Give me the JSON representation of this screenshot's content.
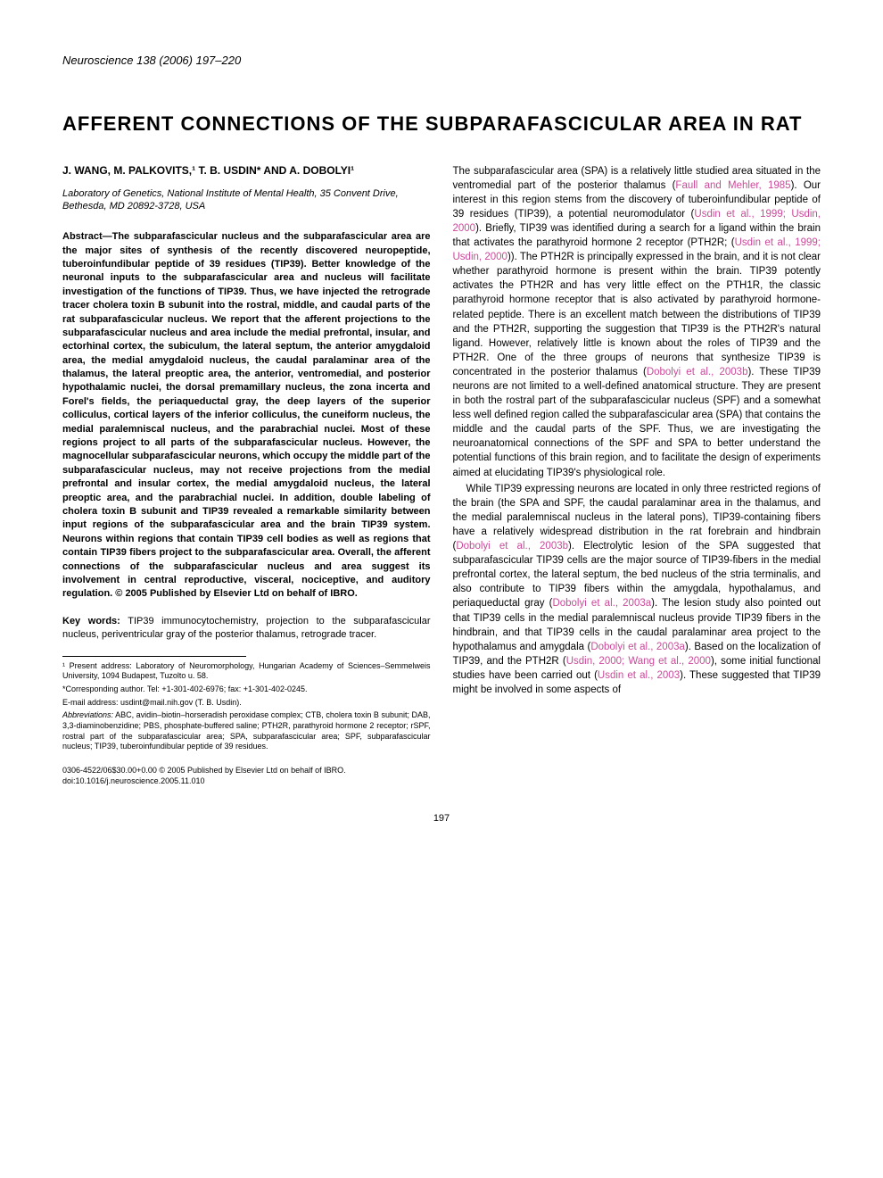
{
  "header": {
    "journal": "Neuroscience 138 (2006) 197–220"
  },
  "title": "AFFERENT CONNECTIONS OF THE SUBPARAFASCICULAR AREA IN RAT",
  "authors": "J. WANG, M. PALKOVITS,¹ T. B. USDIN* AND A. DOBOLYI¹",
  "affiliation": "Laboratory of Genetics, National Institute of Mental Health, 35 Convent Drive, Bethesda, MD 20892-3728, USA",
  "abstract": "Abstract—The subparafascicular nucleus and the subparafascicular area are the major sites of synthesis of the recently discovered neuropeptide, tuberoinfundibular peptide of 39 residues (TIP39). Better knowledge of the neuronal inputs to the subparafascicular area and nucleus will facilitate investigation of the functions of TIP39. Thus, we have injected the retrograde tracer cholera toxin B subunit into the rostral, middle, and caudal parts of the rat subparafascicular nucleus. We report that the afferent projections to the subparafascicular nucleus and area include the medial prefrontal, insular, and ectorhinal cortex, the subiculum, the lateral septum, the anterior amygdaloid area, the medial amygdaloid nucleus, the caudal paralaminar area of the thalamus, the lateral preoptic area, the anterior, ventromedial, and posterior hypothalamic nuclei, the dorsal premamillary nucleus, the zona incerta and Forel's fields, the periaqueductal gray, the deep layers of the superior colliculus, cortical layers of the inferior colliculus, the cuneiform nucleus, the medial paralemniscal nucleus, and the parabrachial nuclei. Most of these regions project to all parts of the subparafascicular nucleus. However, the magnocellular subparafascicular neurons, which occupy the middle part of the subparafascicular nucleus, may not receive projections from the medial prefrontal and insular cortex, the medial amygdaloid nucleus, the lateral preoptic area, and the parabrachial nuclei. In addition, double labeling of cholera toxin B subunit and TIP39 revealed a remarkable similarity between input regions of the subparafascicular area and the brain TIP39 system. Neurons within regions that contain TIP39 cell bodies as well as regions that contain TIP39 fibers project to the subparafascicular area. Overall, the afferent connections of the subparafascicular nucleus and area suggest its involvement in central reproductive, visceral, nociceptive, and auditory regulation. © 2005 Published by Elsevier Ltd on behalf of IBRO.",
  "keywords": {
    "label": "Key words:",
    "text": " TIP39 immunocytochemistry, projection to the subparafascicular nucleus, periventricular gray of the posterior thalamus, retrograde tracer."
  },
  "footnotes": {
    "f1": "¹ Present address: Laboratory of Neuromorphology, Hungarian Academy of Sciences–Semmelweis University, 1094 Budapest, Tuzolto u. 58.",
    "f2": "*Corresponding author. Tel: +1-301-402-6976; fax: +1-301-402-0245.",
    "f3": "E-mail address: usdint@mail.nih.gov (T. B. Usdin).",
    "f4_label": "Abbreviations:",
    "f4_text": " ABC, avidin–biotin–horseradish peroxidase complex; CTB, cholera toxin B subunit; DAB, 3,3-diaminobenzidine; PBS, phosphate-buffered saline; PTH2R, parathyroid hormone 2 receptor; rSPF, rostral part of the subparafascicular area; SPA, subparafascicular area; SPF, subparafascicular nucleus; TIP39, tuberoinfundibular peptide of 39 residues."
  },
  "body": {
    "p1_a": "The subparafascicular area (SPA) is a relatively little studied area situated in the ventromedial part of the posterior thalamus (",
    "p1_ref1": "Faull and Mehler, 1985",
    "p1_b": "). Our interest in this region stems from the discovery of tuberoinfundibular peptide of 39 residues (TIP39), a potential neuromodulator (",
    "p1_ref2": "Usdin et al., 1999; Usdin, 2000",
    "p1_c": "). Briefly, TIP39 was identified during a search for a ligand within the brain that activates the parathyroid hormone 2 receptor (PTH2R; (",
    "p1_ref3": "Usdin et al., 1999; Usdin, 2000",
    "p1_d": ")). The PTH2R is principally expressed in the brain, and it is not clear whether parathyroid hormone is present within the brain. TIP39 potently activates the PTH2R and has very little effect on the PTH1R, the classic parathyroid hormone receptor that is also activated by parathyroid hormone-related peptide. There is an excellent match between the distributions of TIP39 and the PTH2R, supporting the suggestion that TIP39 is the PTH2R's natural ligand. However, relatively little is known about the roles of TIP39 and the PTH2R. One of the three groups of neurons that synthesize TIP39 is concentrated in the posterior thalamus (",
    "p1_ref4": "Dobolyi et al., 2003b",
    "p1_e": "). These TIP39 neurons are not limited to a well-defined anatomical structure. They are present in both the rostral part of the subparafascicular nucleus (SPF) and a somewhat less well defined region called the subparafascicular area (SPA) that contains the middle and the caudal parts of the SPF. Thus, we are investigating the neuroanatomical connections of the SPF and SPA to better understand the potential functions of this brain region, and to facilitate the design of experiments aimed at elucidating TIP39's physiological role.",
    "p2_a": "While TIP39 expressing neurons are located in only three restricted regions of the brain (the SPA and SPF, the caudal paralaminar area in the thalamus, and the medial paralemniscal nucleus in the lateral pons), TIP39-containing fibers have a relatively widespread distribution in the rat forebrain and hindbrain (",
    "p2_ref1": "Dobolyi et al., 2003b",
    "p2_b": "). Electrolytic lesion of the SPA suggested that subparafascicular TIP39 cells are the major source of TIP39-fibers in the medial prefrontal cortex, the lateral septum, the bed nucleus of the stria terminalis, and also contribute to TIP39 fibers within the amygdala, hypothalamus, and periaqueductal gray (",
    "p2_ref2": "Dobolyi et al., 2003a",
    "p2_c": "). The lesion study also pointed out that TIP39 cells in the medial paralemniscal nucleus provide TIP39 fibers in the hindbrain, and that TIP39 cells in the caudal paralaminar area project to the hypothalamus and amygdala (",
    "p2_ref3": "Dobolyi et al., 2003a",
    "p2_d": "). Based on the localization of TIP39, and the PTH2R (",
    "p2_ref4": "Usdin, 2000; Wang et al., 2000",
    "p2_e": "), some initial functional studies have been carried out (",
    "p2_ref5": "Usdin et al., 2003",
    "p2_f": "). These suggested that TIP39 might be involved in some aspects of"
  },
  "doi": {
    "line1": "0306-4522/06$30.00+0.00 © 2005 Published by Elsevier Ltd on behalf of IBRO.",
    "line2": "doi:10.1016/j.neuroscience.2005.11.010"
  },
  "page_number": "197",
  "colors": {
    "ref_link": "#ca4a9a",
    "text": "#000000",
    "background": "#ffffff"
  }
}
